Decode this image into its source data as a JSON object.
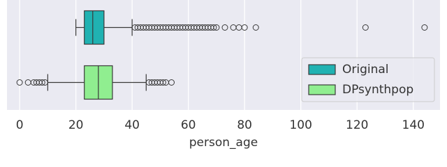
{
  "chart_data": {
    "type": "box",
    "xlabel": "person_age",
    "xlim": [
      -4.5,
      149.5
    ],
    "xticks": [
      0,
      20,
      40,
      60,
      80,
      100,
      120,
      140
    ],
    "grid": true,
    "legend": "lower right",
    "series": [
      {
        "name": "Original",
        "color": "#20b2b2",
        "whislo": 20,
        "q1": 23,
        "med": 26,
        "q3": 30,
        "whishi": 40,
        "fliers": [
          41,
          42,
          43,
          44,
          45,
          46,
          47,
          48,
          49,
          50,
          51,
          52,
          53,
          54,
          55,
          56,
          57,
          58,
          59,
          60,
          61,
          62,
          63,
          64,
          65,
          66,
          67,
          68,
          69,
          70,
          73,
          76,
          78,
          80,
          84,
          123,
          144
        ]
      },
      {
        "name": "DPsynthpop",
        "color": "#90ee90",
        "whislo": 10,
        "q1": 23,
        "med": 28,
        "q3": 33,
        "whishi": 45,
        "fliers": [
          0,
          3,
          5,
          6,
          7,
          8,
          9,
          46,
          47,
          48,
          49,
          50,
          51,
          52,
          54
        ]
      }
    ]
  }
}
